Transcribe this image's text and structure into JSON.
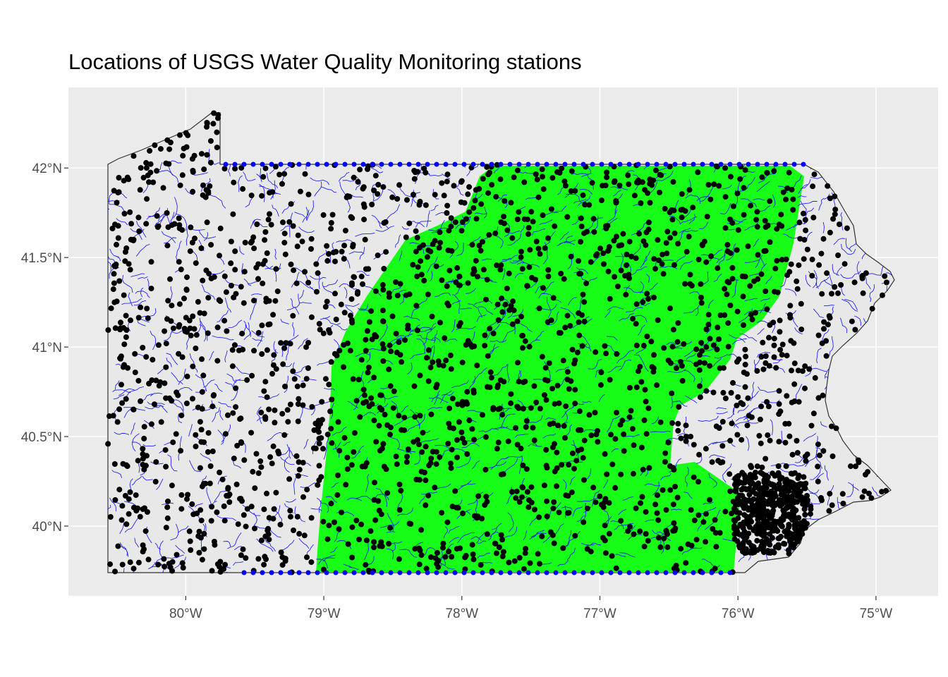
{
  "title": "Locations of USGS Water Quality Monitoring stations",
  "chart_data": {
    "type": "map",
    "title": "Locations of USGS Water Quality Monitoring stations",
    "x_axis": {
      "range": [
        -80.85,
        -74.55
      ],
      "ticks": [
        {
          "value": -80,
          "label": "80°W"
        },
        {
          "value": -79,
          "label": "79°W"
        },
        {
          "value": -78,
          "label": "78°W"
        },
        {
          "value": -77,
          "label": "77°W"
        },
        {
          "value": -76,
          "label": "76°W"
        },
        {
          "value": -75,
          "label": "75°W"
        }
      ]
    },
    "y_axis": {
      "range": [
        39.61,
        42.45
      ],
      "ticks": [
        {
          "value": 40,
          "label": "40°N"
        },
        {
          "value": 40.5,
          "label": "40.5°N"
        },
        {
          "value": 41,
          "label": "41°N"
        },
        {
          "value": 41.5,
          "label": "41.5°N"
        },
        {
          "value": 42,
          "label": "42°N"
        }
      ]
    },
    "grid": true,
    "layers": [
      {
        "name": "state-boundary",
        "kind": "polygon",
        "fill": "#e8e8e8",
        "stroke": "#333333"
      },
      {
        "name": "ridge-valley-region",
        "kind": "polygon",
        "fill": "#00ff00"
      },
      {
        "name": "streams",
        "kind": "lines",
        "color": "#0000ff"
      },
      {
        "name": "stations",
        "kind": "points",
        "color": "#000000"
      }
    ],
    "colors": {
      "panel": "#ebebeb",
      "grid": "#ffffff",
      "state_fill": "#e8e8e8",
      "region_fill": "#00ff00",
      "streams": "#0000ff",
      "stations": "#000000"
    }
  }
}
